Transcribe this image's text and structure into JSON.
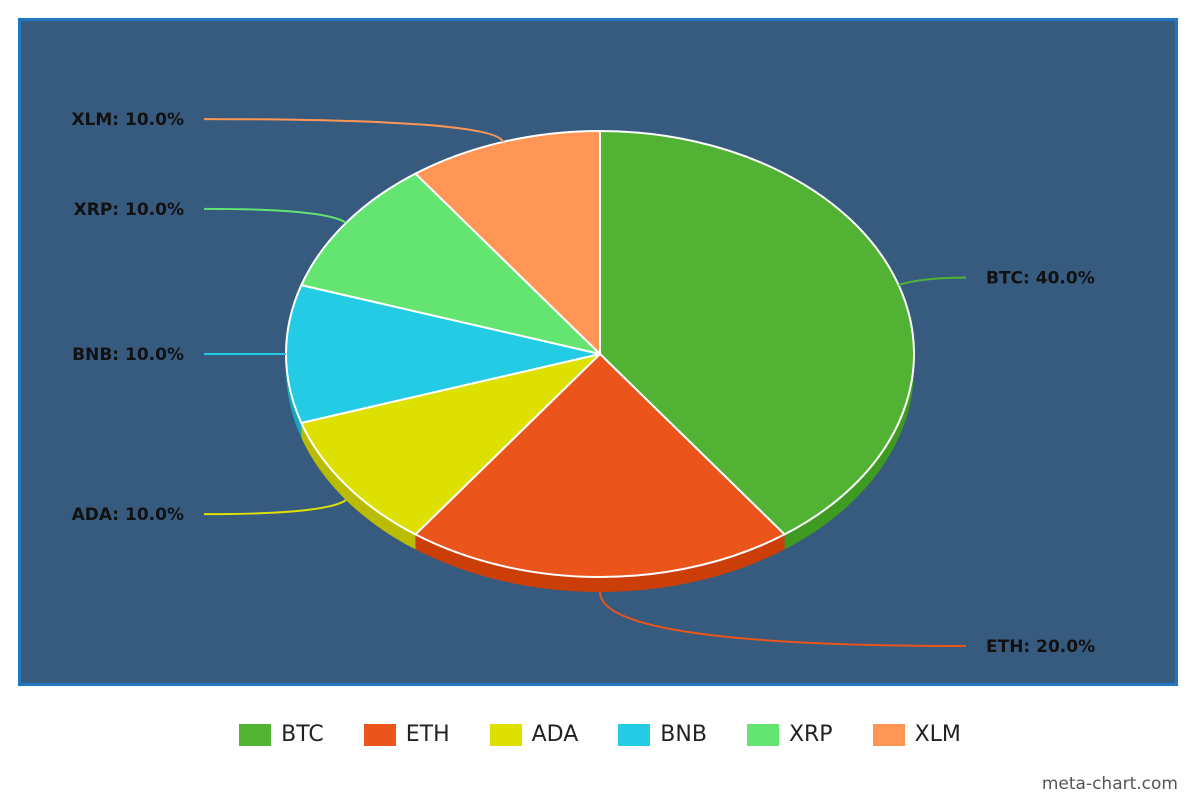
{
  "chart_data": {
    "type": "pie",
    "style": "3d",
    "slices": [
      {
        "label": "BTC",
        "value": 40.0,
        "display": "BTC: 40.0%",
        "color": "#52b234",
        "side_color": "#3f9a22"
      },
      {
        "label": "ETH",
        "value": 20.0,
        "display": "ETH: 20.0%",
        "color": "#eb541a",
        "side_color": "#cc3e07"
      },
      {
        "label": "ADA",
        "value": 10.0,
        "display": "ADA: 10.0%",
        "color": "#dde000",
        "side_color": "#b9bc00"
      },
      {
        "label": "BNB",
        "value": 10.0,
        "display": "BNB: 10.0%",
        "color": "#24cbe5",
        "side_color": "#14a9c1"
      },
      {
        "label": "XRP",
        "value": 10.0,
        "display": "XRP: 10.0%",
        "color": "#64e572",
        "side_color": "#45c654"
      },
      {
        "label": "XLM",
        "value": 10.0,
        "display": "XLM: 10.0%",
        "color": "#ff9655",
        "side_color": "#e07a3a"
      }
    ],
    "legend_position": "bottom",
    "background_color": "#375a7f"
  },
  "watermark": "meta-chart.com"
}
